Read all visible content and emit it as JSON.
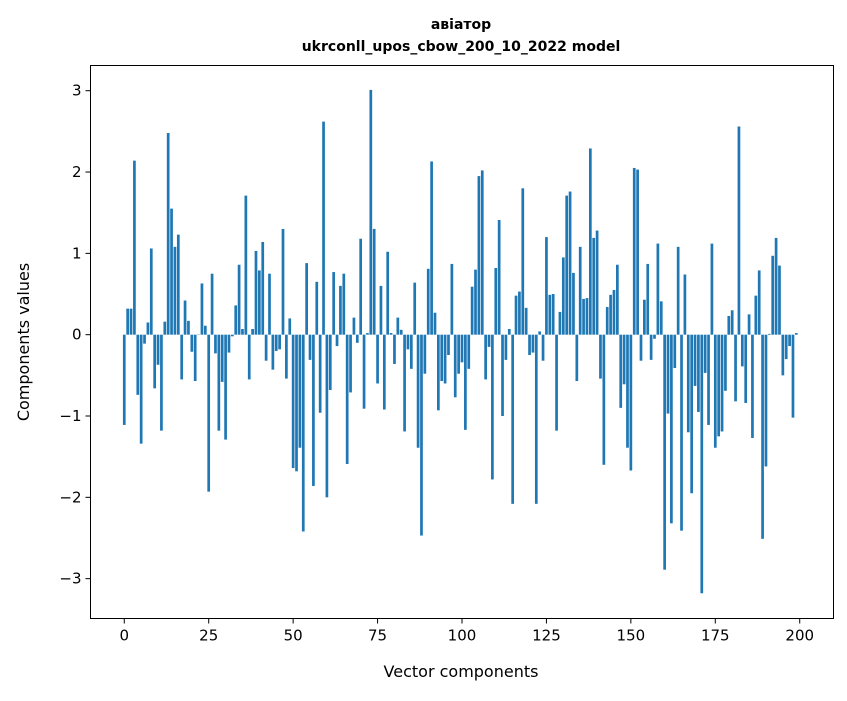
{
  "chart_data": {
    "type": "bar",
    "title": [
      "авіатор",
      "ukrconll_upos_cbow_200_10_2022 model"
    ],
    "xlabel": "Vector components",
    "ylabel": "Components values",
    "xlim": [
      -10,
      210
    ],
    "ylim": [
      -3.49,
      3.31
    ],
    "xticks": [
      0,
      25,
      50,
      75,
      100,
      125,
      150,
      175,
      200
    ],
    "yticks": [
      -3,
      -2,
      -1,
      0,
      1,
      2,
      3
    ],
    "ytick_labels": [
      "−3",
      "−2",
      "−1",
      "0",
      "1",
      "2",
      "3"
    ],
    "grid": false,
    "bar_color": "#1f77b4",
    "values": [
      -1.11,
      0.32,
      0.32,
      2.14,
      -0.74,
      -1.34,
      -0.11,
      0.15,
      1.06,
      -0.66,
      -0.37,
      -1.18,
      0.16,
      2.48,
      1.55,
      1.08,
      1.23,
      -0.55,
      0.42,
      0.17,
      -0.21,
      -0.57,
      0.0,
      0.63,
      0.11,
      -1.93,
      0.75,
      -0.23,
      -1.18,
      -0.58,
      -1.29,
      -0.22,
      -0.02,
      0.36,
      0.86,
      0.07,
      1.71,
      -0.55,
      0.07,
      1.03,
      0.79,
      1.14,
      -0.32,
      0.75,
      -0.43,
      -0.2,
      -0.18,
      1.3,
      -0.54,
      0.2,
      -1.64,
      -1.68,
      -1.39,
      -2.42,
      0.88,
      -0.31,
      -1.86,
      0.65,
      -0.96,
      2.62,
      -2.0,
      -0.68,
      0.77,
      -0.14,
      0.6,
      0.75,
      -1.59,
      -0.71,
      0.21,
      -0.1,
      1.18,
      -0.91,
      0.02,
      3.01,
      1.3,
      -0.6,
      0.6,
      -0.92,
      1.02,
      0.02,
      -0.36,
      0.21,
      0.06,
      -1.19,
      -0.18,
      -0.42,
      0.64,
      -1.39,
      -2.47,
      -0.48,
      0.81,
      2.13,
      0.27,
      -0.93,
      -0.57,
      -0.6,
      -0.25,
      0.87,
      -0.77,
      -0.48,
      -0.34,
      -1.17,
      -0.42,
      0.59,
      0.8,
      1.95,
      2.02,
      -0.55,
      -0.15,
      -1.78,
      0.82,
      1.41,
      -1.0,
      -0.31,
      0.07,
      -2.08,
      0.48,
      0.53,
      1.8,
      0.33,
      -0.25,
      -0.22,
      -2.08,
      0.04,
      -0.32,
      1.2,
      0.49,
      0.5,
      -1.18,
      0.28,
      0.95,
      1.71,
      1.76,
      0.76,
      -0.57,
      1.08,
      0.44,
      0.45,
      2.29,
      1.19,
      1.28,
      -0.54,
      -1.6,
      0.34,
      0.49,
      0.55,
      0.86,
      -0.9,
      -0.61,
      -1.39,
      -1.67,
      2.05,
      2.03,
      -0.32,
      0.43,
      0.87,
      -0.31,
      -0.05,
      1.12,
      0.41,
      -2.89,
      -0.97,
      -2.32,
      -0.41,
      1.08,
      -2.41,
      0.74,
      -1.2,
      -1.95,
      -0.63,
      -0.95,
      -3.18,
      -0.47,
      -1.11,
      1.12,
      -1.39,
      -1.25,
      -1.19,
      -0.69,
      0.23,
      0.3,
      -0.82,
      2.56,
      -0.39,
      -0.84,
      0.25,
      -1.27,
      0.48,
      0.79,
      -2.51,
      -1.62,
      0.01,
      0.97,
      1.19,
      0.85,
      -0.5,
      -0.3,
      -0.14,
      -1.02,
      0.02
    ]
  }
}
